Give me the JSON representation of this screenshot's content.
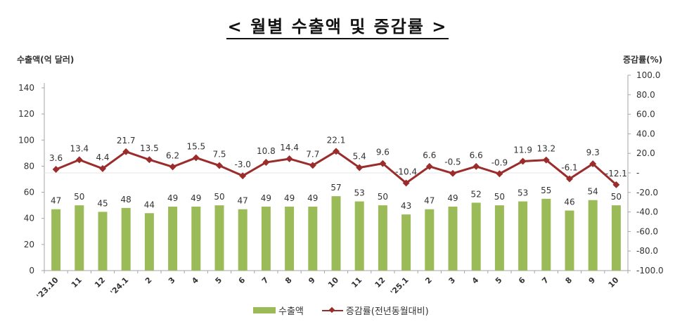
{
  "title": "< 월별 수출액 및 증감률 >",
  "chart_data": {
    "type": "bar+line",
    "title": "< 월별 수출액 및 증감률 >",
    "xlabel": "",
    "ylabel_left": "수출액(억 달러)",
    "ylabel_right": "증감률(%)",
    "ylim_left": [
      0,
      140
    ],
    "ylim_right": [
      -100.0,
      100.0
    ],
    "yticks_left": [
      "0",
      "20",
      "40",
      "60",
      "80",
      "100",
      "120",
      "140"
    ],
    "yticks_right": [
      "-100.0",
      "-80.0",
      "-60.0",
      "-40.0",
      "-20.0",
      "-",
      "20.0",
      "40.0",
      "60.0",
      "80.0",
      "100.0"
    ],
    "categories": [
      "'23.10",
      "11",
      "12",
      "'24.1",
      "2",
      "3",
      "4",
      "5",
      "6",
      "7",
      "8",
      "9",
      "10",
      "11",
      "12",
      "'25.1",
      "2",
      "3",
      "4",
      "5",
      "6",
      "7",
      "8",
      "9",
      "10"
    ],
    "series": [
      {
        "name": "수출액",
        "type": "bar",
        "axis": "left",
        "color": "#9bbb59",
        "values": [
          47,
          50,
          45,
          48,
          44,
          49,
          49,
          50,
          47,
          49,
          49,
          49,
          57,
          53,
          50,
          43,
          47,
          49,
          52,
          50,
          53,
          55,
          46,
          54,
          50
        ],
        "labels": [
          "47",
          "50",
          "45",
          "48",
          "44",
          "49",
          "49",
          "50",
          "47",
          "49",
          "49",
          "49",
          "57",
          "53",
          "50",
          "43",
          "47",
          "49",
          "52",
          "50",
          "53",
          "55",
          "46",
          "54",
          "50"
        ]
      },
      {
        "name": "증감률(전년동월대비)",
        "type": "line",
        "axis": "right",
        "color": "#9b2c2c",
        "values": [
          3.6,
          13.4,
          4.4,
          21.7,
          13.5,
          6.2,
          15.5,
          7.5,
          -3.0,
          10.8,
          14.4,
          7.7,
          22.1,
          5.4,
          9.6,
          -10.4,
          6.6,
          -0.5,
          6.6,
          -0.9,
          11.9,
          13.2,
          -6.1,
          9.3,
          -12.1
        ],
        "labels": [
          "3.6",
          "13.4",
          "4.4",
          "21.7",
          "13.5",
          "6.2",
          "15.5",
          "7.5",
          "-3.0",
          "10.8",
          "14.4",
          "7.7",
          "22.1",
          "5.4",
          "9.6",
          "-10.4",
          "6.6",
          "-0.5",
          "6.6",
          "-0.9",
          "11.9",
          "13.2",
          "-6.1",
          "9.3",
          "-12.1"
        ]
      }
    ],
    "legend": [
      "수출액",
      "증감률(전년동월대비)"
    ],
    "legend_position": "bottom",
    "grid": false
  },
  "legend": {
    "bar_label": "수출액",
    "line_label": "증감률(전년동월대비)"
  }
}
